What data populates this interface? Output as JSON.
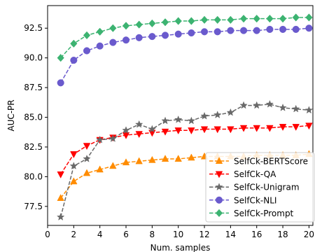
{
  "chart_data": {
    "type": "line",
    "xlabel": "Num. samples",
    "ylabel": "AUC-PR",
    "xlim": [
      0,
      20.3
    ],
    "ylim": [
      75.9,
      94.4
    ],
    "x_ticks": [
      0,
      2,
      4,
      6,
      8,
      10,
      12,
      14,
      16,
      18,
      20
    ],
    "y_ticks": [
      77.5,
      80.0,
      82.5,
      85.0,
      87.5,
      90.0,
      92.5
    ],
    "y_tick_labels": [
      "77.5",
      "80.0",
      "82.5",
      "85.0",
      "87.5",
      "90.0",
      "92.5"
    ],
    "grid": false,
    "legend_position": "lower-right",
    "x": [
      1,
      2,
      3,
      4,
      5,
      6,
      7,
      8,
      9,
      10,
      11,
      12,
      13,
      14,
      15,
      16,
      17,
      18,
      19,
      20
    ],
    "series": [
      {
        "name": "SelfCk-BERTScore",
        "color": "#ff8c00",
        "marker": "triangle-up",
        "values": [
          78.2,
          79.6,
          80.3,
          80.6,
          80.9,
          81.2,
          81.3,
          81.4,
          81.5,
          81.5,
          81.6,
          81.7,
          81.7,
          81.7,
          81.7,
          81.8,
          81.8,
          81.8,
          81.8,
          81.9
        ]
      },
      {
        "name": "SelfCk-QA",
        "color": "#ff0000",
        "marker": "triangle-down",
        "values": [
          80.2,
          81.9,
          82.6,
          83.1,
          83.3,
          83.5,
          83.6,
          83.7,
          83.8,
          83.9,
          83.9,
          84.0,
          84.0,
          84.0,
          84.1,
          84.1,
          84.1,
          84.2,
          84.2,
          84.3
        ]
      },
      {
        "name": "SelfCk-Unigram",
        "color": "#696969",
        "marker": "star",
        "values": [
          76.6,
          80.9,
          81.5,
          83.1,
          83.2,
          83.9,
          84.4,
          84.0,
          84.7,
          84.8,
          84.7,
          85.1,
          85.2,
          85.4,
          86.0,
          86.0,
          86.1,
          85.8,
          85.7,
          85.6
        ]
      },
      {
        "name": "SelfCk-NLI",
        "color": "#6a5acd",
        "marker": "circle",
        "values": [
          87.9,
          89.8,
          90.6,
          91.0,
          91.3,
          91.5,
          91.7,
          91.8,
          91.9,
          92.0,
          92.1,
          92.2,
          92.2,
          92.3,
          92.3,
          92.3,
          92.4,
          92.4,
          92.4,
          92.5
        ]
      },
      {
        "name": "SelfCk-Prompt",
        "color": "#3cb371",
        "marker": "diamond",
        "values": [
          90.0,
          91.2,
          91.9,
          92.2,
          92.5,
          92.7,
          92.8,
          92.9,
          93.0,
          93.1,
          93.1,
          93.2,
          93.2,
          93.2,
          93.3,
          93.3,
          93.3,
          93.3,
          93.4,
          93.4
        ]
      }
    ]
  }
}
